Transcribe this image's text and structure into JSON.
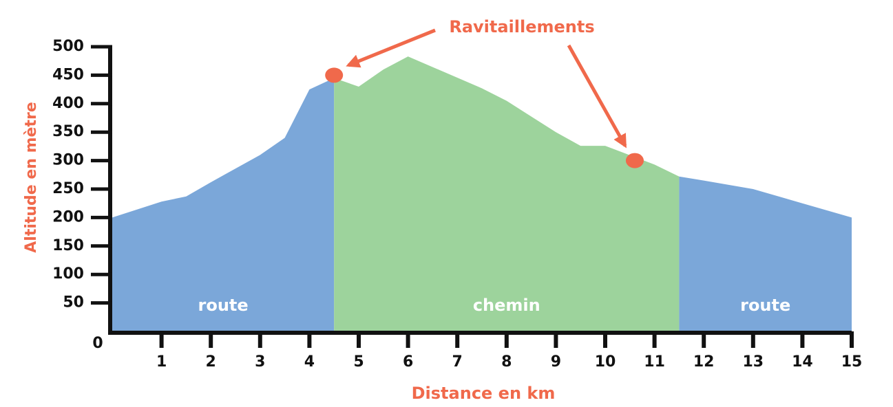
{
  "chart_data": {
    "type": "area",
    "title": "Ravitaillements",
    "x_label": "Distance en km",
    "y_label": "Altitude en mètre",
    "x": [
      0,
      1,
      1.5,
      2,
      3,
      3.5,
      4,
      4.5,
      5,
      5.5,
      6,
      7.5,
      8,
      9,
      9.5,
      10,
      11,
      11.5,
      12,
      13,
      14,
      15
    ],
    "values": [
      200,
      228,
      237,
      262,
      310,
      340,
      425,
      445,
      430,
      460,
      483,
      427,
      405,
      350,
      326,
      326,
      293,
      272,
      265,
      250,
      225,
      200
    ],
    "zones": [
      {
        "name": "route",
        "from": 0,
        "to": 4.5,
        "color": "#7ba7d9"
      },
      {
        "name": "chemin",
        "from": 4.5,
        "to": 11.5,
        "color": "#9dd39c"
      },
      {
        "name": "route",
        "from": 11.5,
        "to": 15,
        "color": "#7ba7d9"
      }
    ],
    "markers": [
      {
        "x": 4.5,
        "y": 450
      },
      {
        "x": 10.6,
        "y": 300
      }
    ],
    "marker_color": "#f0694b",
    "xlim": [
      0,
      15
    ],
    "xticks": [
      1,
      2,
      3,
      4,
      5,
      6,
      7,
      8,
      9,
      10,
      11,
      12,
      13,
      14,
      15
    ],
    "ylim": [
      0,
      500
    ],
    "yticks": [
      0,
      50,
      100,
      150,
      200,
      250,
      300,
      350,
      400,
      450,
      500
    ]
  }
}
